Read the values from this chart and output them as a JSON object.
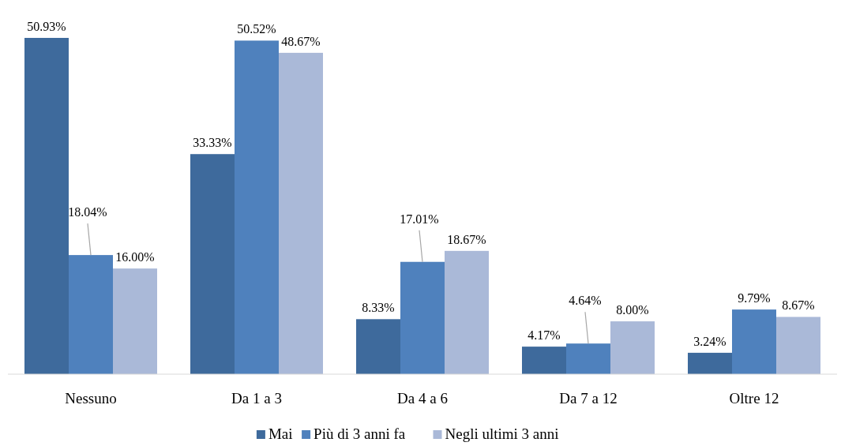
{
  "chart_data": {
    "type": "bar",
    "categories": [
      "Nessuno",
      "Da 1 a 3",
      "Da 4 a 6",
      "Da 7 a 12",
      "Oltre 12"
    ],
    "series": [
      {
        "name": "Mai",
        "color": "#3e6a9c",
        "values": [
          50.93,
          33.33,
          8.33,
          4.17,
          3.24
        ],
        "value_labels": [
          "50.93%",
          "33.33%",
          "8.33%",
          "4.17%",
          "3.24%"
        ]
      },
      {
        "name": "Più di 3 anni fa",
        "color": "#4f81bd",
        "values": [
          18.04,
          50.52,
          17.01,
          4.64,
          9.79
        ],
        "value_labels": [
          "18.04%",
          "50.52%",
          "17.01%",
          "4.64%",
          "9.79%"
        ]
      },
      {
        "name": "Negli ultimi 3 anni",
        "color": "#aab9d8",
        "values": [
          16.0,
          48.67,
          18.67,
          8.0,
          8.67
        ],
        "value_labels": [
          "16.00%",
          "48.67%",
          "18.67%",
          "8.00%",
          "8.67%"
        ]
      }
    ],
    "legend": "bottom"
  }
}
